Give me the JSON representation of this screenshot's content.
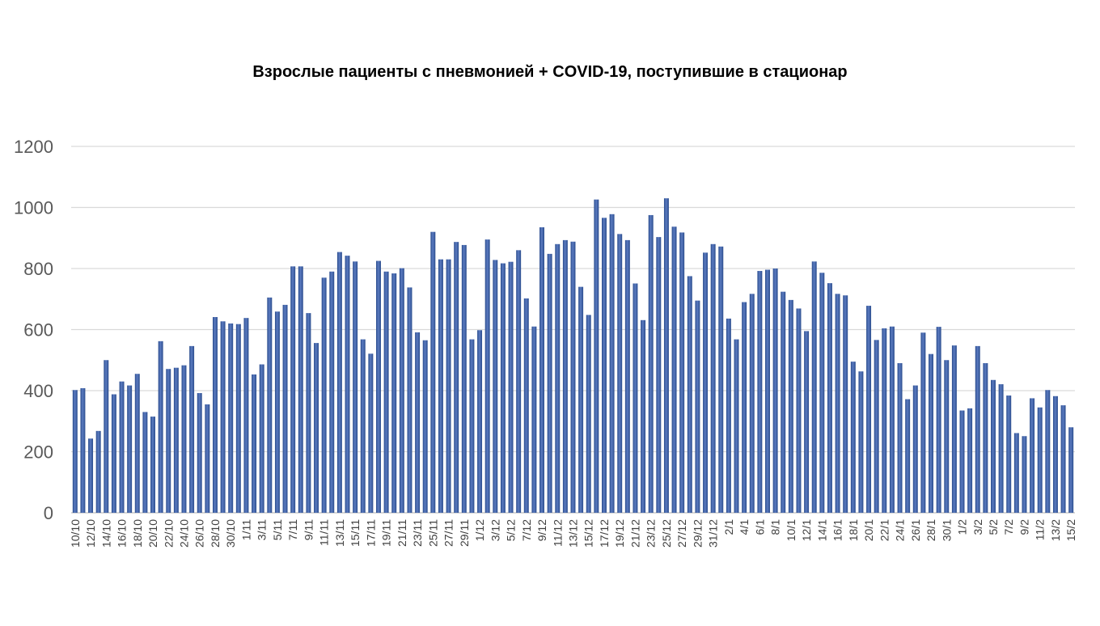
{
  "chart_data": {
    "type": "bar",
    "title": "Взрослые пациенты с пневмонией + COVID-19, поступившие в стационар",
    "xlabel": "",
    "ylabel": "",
    "ylim": [
      0,
      1200
    ],
    "yticks": [
      0,
      200,
      400,
      600,
      800,
      1000,
      1200
    ],
    "grid": true,
    "legend": "none",
    "bar_color": "#2a4c8d",
    "bar_color_light": "#5b7bc0",
    "gridline_color": "#d9d9d9",
    "categories": [
      "10/10",
      "11/10",
      "12/10",
      "13/10",
      "14/10",
      "15/10",
      "16/10",
      "17/10",
      "18/10",
      "19/10",
      "20/10",
      "21/10",
      "22/10",
      "23/10",
      "24/10",
      "25/10",
      "26/10",
      "27/10",
      "28/10",
      "29/10",
      "30/10",
      "31/10",
      "1/11",
      "2/11",
      "3/11",
      "4/11",
      "5/11",
      "6/11",
      "7/11",
      "8/11",
      "9/11",
      "10/11",
      "11/11",
      "12/11",
      "13/11",
      "14/11",
      "15/11",
      "16/11",
      "17/11",
      "18/11",
      "19/11",
      "20/11",
      "21/11",
      "22/11",
      "23/11",
      "24/11",
      "25/11",
      "26/11",
      "27/11",
      "28/11",
      "29/11",
      "30/11",
      "1/12",
      "2/12",
      "3/12",
      "4/12",
      "5/12",
      "6/12",
      "7/12",
      "8/12",
      "9/12",
      "10/12",
      "11/12",
      "12/12",
      "13/12",
      "14/12",
      "15/12",
      "16/12",
      "17/12",
      "18/12",
      "19/12",
      "20/12",
      "21/12",
      "22/12",
      "23/12",
      "24/12",
      "25/12",
      "26/12",
      "27/12",
      "28/12",
      "29/12",
      "30/12",
      "31/12",
      "1/1",
      "2/1",
      "3/1",
      "4/1",
      "5/1",
      "6/1",
      "7/1",
      "8/1",
      "9/1",
      "10/1",
      "11/1",
      "12/1",
      "13/1",
      "14/1",
      "15/1",
      "16/1",
      "17/1",
      "18/1",
      "19/1",
      "20/1",
      "21/1",
      "22/1",
      "23/1",
      "24/1",
      "25/1",
      "26/1",
      "27/1",
      "28/1",
      "29/1",
      "30/1",
      "31/1",
      "1/2",
      "2/2",
      "3/2",
      "4/2",
      "5/2",
      "6/2",
      "7/2",
      "8/2",
      "9/2",
      "10/2",
      "11/2",
      "12/2",
      "13/2",
      "14/2",
      "15/2"
    ],
    "tick_labels": [
      "10/10",
      "12/10",
      "14/10",
      "16/10",
      "18/10",
      "20/10",
      "22/10",
      "24/10",
      "26/10",
      "28/10",
      "30/10",
      "1/11",
      "3/11",
      "5/11",
      "7/11",
      "9/11",
      "11/11",
      "13/11",
      "15/11",
      "17/11",
      "19/11",
      "21/11",
      "23/11",
      "25/11",
      "27/11",
      "29/11",
      "1/12",
      "3/12",
      "5/12",
      "7/12",
      "9/12",
      "11/12",
      "13/12",
      "15/12",
      "17/12",
      "19/12",
      "21/12",
      "23/12",
      "25/12",
      "27/12",
      "29/12",
      "31/12",
      "2/1",
      "4/1",
      "6/1",
      "8/1",
      "10/1",
      "12/1",
      "14/1",
      "16/1",
      "18/1",
      "20/1",
      "22/1",
      "24/1",
      "26/1",
      "28/1",
      "30/1",
      "1/2",
      "3/2",
      "5/2",
      "7/2",
      "9/2",
      "11/2",
      "13/2",
      "15/2"
    ],
    "values": [
      402,
      408,
      243,
      268,
      500,
      388,
      430,
      417,
      455,
      330,
      315,
      562,
      471,
      475,
      483,
      546,
      392,
      355,
      641,
      627,
      620,
      618,
      638,
      453,
      486,
      705,
      659,
      681,
      807,
      807,
      654,
      556,
      770,
      790,
      854,
      842,
      823,
      568,
      521,
      825,
      790,
      784,
      801,
      738,
      591,
      565,
      920,
      830,
      830,
      887,
      877,
      568,
      598,
      895,
      828,
      817,
      822,
      860,
      702,
      610,
      935,
      848,
      880,
      893,
      888,
      740,
      648,
      1026,
      966,
      978,
      913,
      893,
      751,
      631,
      975,
      903,
      1030,
      937,
      918,
      775,
      695,
      852,
      880,
      872,
      636,
      568,
      690,
      717,
      792,
      796,
      800,
      724,
      697,
      669,
      595,
      823,
      786,
      752,
      717,
      712,
      495,
      463,
      678,
      566,
      604,
      610,
      490,
      372,
      417,
      590,
      520,
      609,
      500,
      548,
      335,
      342,
      546,
      490,
      435,
      421,
      384,
      261,
      251,
      375,
      345,
      402,
      382,
      352,
      280
    ]
  }
}
